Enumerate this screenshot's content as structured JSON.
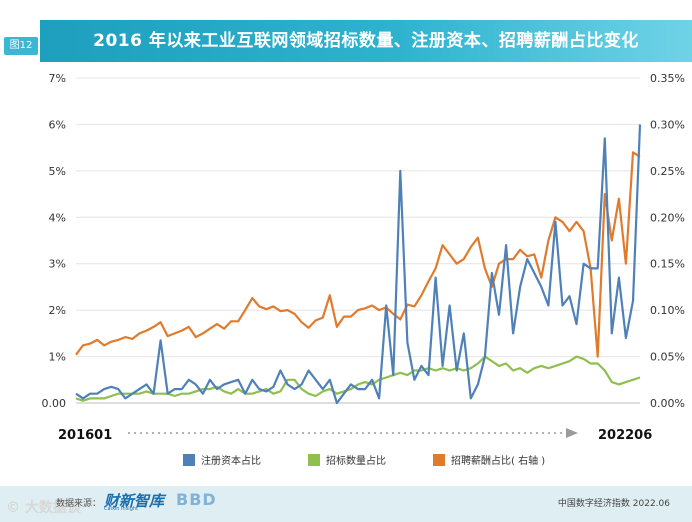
{
  "badge": "图12",
  "title": "2016 年以来工业互联网领域招标数量、注册资本、招聘薪酬占比变化",
  "footer": {
    "source_label": "数据来源：",
    "logo1": "财新智库",
    "logo1_sub": "Caixin Insight",
    "logo2": "BBD",
    "right": "中国数字经济指数 2022.06",
    "watermark": "© 大数据谈"
  },
  "timeline": {
    "start": "201601",
    "end": "202206"
  },
  "legend": [
    {
      "label": "注册资本占比",
      "color": "#4f81b8"
    },
    {
      "label": "招标数量占比",
      "color": "#8fbf4e"
    },
    {
      "label": "招聘薪酬占比( 右轴 )",
      "color": "#e07b2e"
    }
  ],
  "chart_data": {
    "type": "line",
    "x_start": "2016-01",
    "x_end": "2022-06",
    "left_axis": {
      "ylim": [
        0,
        7
      ],
      "ticks": [
        "0.00",
        "1%",
        "2%",
        "3%",
        "4%",
        "5%",
        "6%",
        "7%"
      ]
    },
    "right_axis": {
      "ylim": [
        0,
        0.35
      ],
      "ticks": [
        "0.00%",
        "0.05%",
        "0.10%",
        "0.15%",
        "0.20%",
        "0.25%",
        "0.30%",
        "0.35%"
      ]
    },
    "grid": true,
    "series": [
      {
        "name": "注册资本占比",
        "axis": "left",
        "color": "#4f81b8",
        "values": [
          0.2,
          0.1,
          0.2,
          0.2,
          0.3,
          0.35,
          0.3,
          0.1,
          0.2,
          0.3,
          0.4,
          0.2,
          1.35,
          0.2,
          0.3,
          0.3,
          0.5,
          0.4,
          0.2,
          0.5,
          0.3,
          0.4,
          0.45,
          0.5,
          0.2,
          0.5,
          0.3,
          0.25,
          0.35,
          0.7,
          0.4,
          0.3,
          0.4,
          0.7,
          0.5,
          0.3,
          0.5,
          0.0,
          0.2,
          0.4,
          0.3,
          0.3,
          0.5,
          0.1,
          2.1,
          0.6,
          5.0,
          1.3,
          0.5,
          0.8,
          0.6,
          2.7,
          0.8,
          2.1,
          0.7,
          1.5,
          0.1,
          0.4,
          1.0,
          2.8,
          1.9,
          3.4,
          1.5,
          2.5,
          3.1,
          2.8,
          2.5,
          2.1,
          3.9,
          2.1,
          2.3,
          1.7,
          3.0,
          2.9,
          2.9,
          5.7,
          1.5,
          2.7,
          1.4,
          2.2,
          6.0
        ]
      },
      {
        "name": "招标数量占比",
        "axis": "left",
        "color": "#8fbf4e",
        "values": [
          0.1,
          0.05,
          0.1,
          0.1,
          0.1,
          0.15,
          0.2,
          0.2,
          0.2,
          0.2,
          0.25,
          0.2,
          0.2,
          0.2,
          0.15,
          0.2,
          0.2,
          0.25,
          0.3,
          0.3,
          0.35,
          0.25,
          0.2,
          0.3,
          0.2,
          0.2,
          0.25,
          0.3,
          0.2,
          0.25,
          0.5,
          0.5,
          0.3,
          0.2,
          0.15,
          0.25,
          0.3,
          0.2,
          0.25,
          0.3,
          0.4,
          0.45,
          0.4,
          0.5,
          0.55,
          0.6,
          0.65,
          0.6,
          0.7,
          0.7,
          0.75,
          0.7,
          0.75,
          0.7,
          0.75,
          0.7,
          0.75,
          0.85,
          1.0,
          0.9,
          0.8,
          0.85,
          0.7,
          0.75,
          0.65,
          0.75,
          0.8,
          0.75,
          0.8,
          0.85,
          0.9,
          1.0,
          0.95,
          0.85,
          0.85,
          0.7,
          0.45,
          0.4,
          0.45,
          0.5,
          0.55
        ]
      },
      {
        "name": "招聘薪酬占比( 右轴 )",
        "axis": "right",
        "color": "#e07b2e",
        "values": [
          0.052,
          0.062,
          0.064,
          0.068,
          0.062,
          0.066,
          0.068,
          0.071,
          0.069,
          0.075,
          0.078,
          0.082,
          0.087,
          0.072,
          0.075,
          0.078,
          0.082,
          0.071,
          0.075,
          0.08,
          0.085,
          0.08,
          0.088,
          0.088,
          0.1,
          0.113,
          0.104,
          0.101,
          0.104,
          0.099,
          0.1,
          0.096,
          0.087,
          0.081,
          0.089,
          0.092,
          0.116,
          0.082,
          0.093,
          0.093,
          0.1,
          0.102,
          0.105,
          0.1,
          0.103,
          0.096,
          0.09,
          0.106,
          0.104,
          0.116,
          0.131,
          0.145,
          0.17,
          0.16,
          0.15,
          0.155,
          0.168,
          0.178,
          0.145,
          0.125,
          0.15,
          0.155,
          0.155,
          0.165,
          0.158,
          0.16,
          0.135,
          0.175,
          0.2,
          0.195,
          0.185,
          0.195,
          0.185,
          0.145,
          0.05,
          0.225,
          0.175,
          0.22,
          0.15,
          0.27,
          0.265
        ]
      }
    ]
  }
}
